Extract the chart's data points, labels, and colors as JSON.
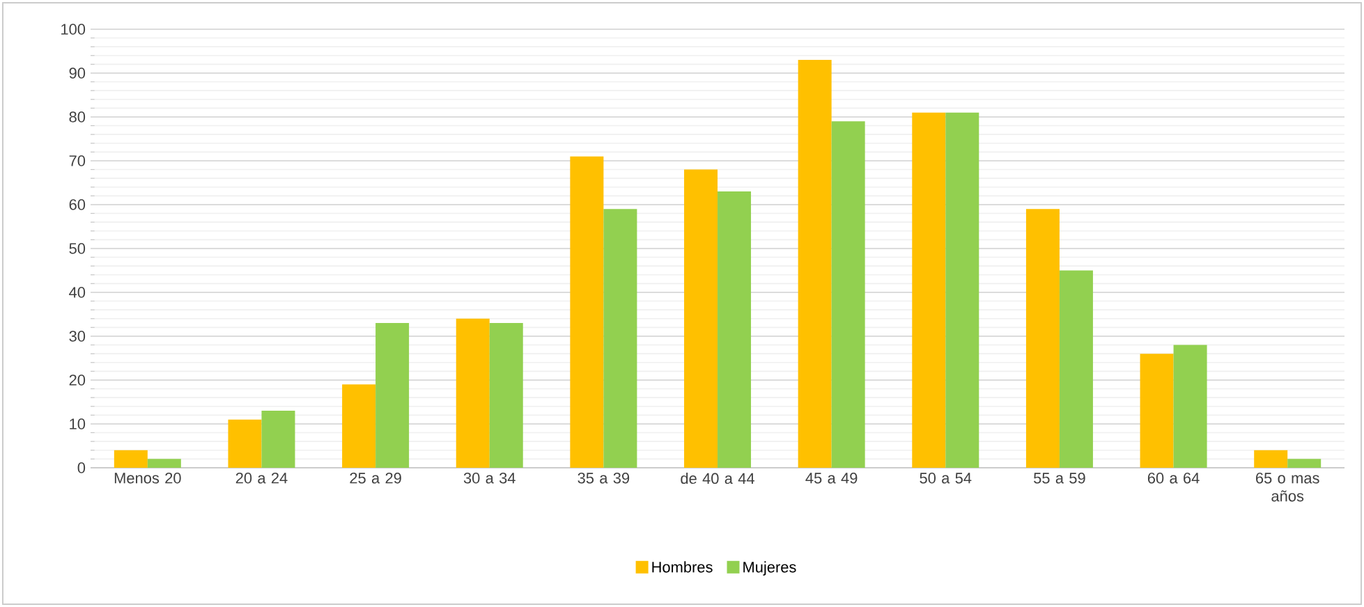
{
  "chart_data": {
    "type": "bar",
    "categories": [
      "Menos 20",
      "20 a 24",
      "25 a 29",
      "30 a 34",
      "35 a 39",
      "de 40 a 44",
      "45 a 49",
      "50 a 54",
      "55 a 59",
      "60 a 64",
      "65 o mas años"
    ],
    "series": [
      {
        "name": "Hombres",
        "color": "#ffc000",
        "values": [
          4,
          11,
          19,
          34,
          71,
          68,
          93,
          81,
          59,
          26,
          4
        ]
      },
      {
        "name": "Mujeres",
        "color": "#92d050",
        "values": [
          2,
          13,
          33,
          33,
          59,
          63,
          79,
          81,
          45,
          28,
          2
        ]
      }
    ],
    "ylim": [
      0,
      100
    ],
    "yticks": [
      0,
      10,
      20,
      30,
      40,
      50,
      60,
      70,
      80,
      90,
      100
    ],
    "grid": "y",
    "legend": "bottom"
  }
}
